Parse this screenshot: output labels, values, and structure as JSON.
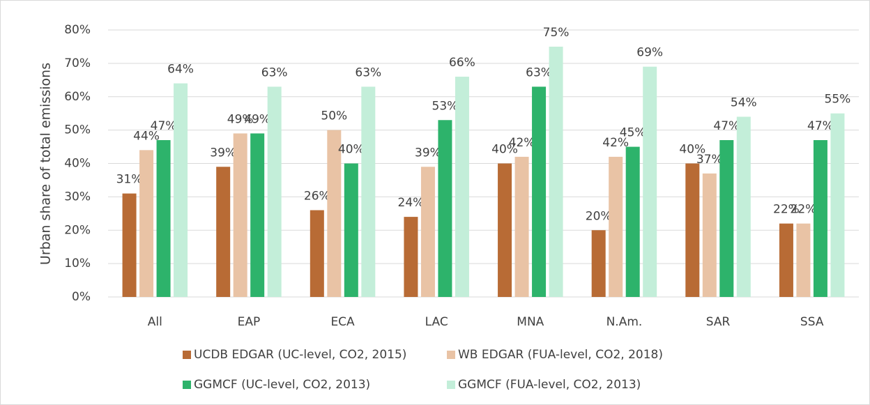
{
  "chart_data": {
    "type": "bar",
    "y_label": "Urban share of total emissions",
    "categories": [
      "All",
      "EAP",
      "ECA",
      "LAC",
      "MNA",
      "N.Am.",
      "SAR",
      "SSA"
    ],
    "series": [
      {
        "name": "UCDB EDGAR (UC-level, CO2, 2015)",
        "color": "#b86b35",
        "values": [
          31,
          39,
          26,
          24,
          40,
          20,
          40,
          22
        ],
        "value_labels": [
          "31%",
          "39%",
          "26%",
          "24%",
          "40%",
          "20%",
          "40%",
          "22%"
        ]
      },
      {
        "name": "WB EDGAR (FUA-level, CO2, 2018)",
        "color": "#e9c3a5",
        "values": [
          44,
          49,
          50,
          39,
          42,
          42,
          37,
          22
        ],
        "value_labels": [
          "44%",
          "49%",
          "50%",
          "39%",
          "42%",
          "42%",
          "37%",
          "22%"
        ]
      },
      {
        "name": "GGMCF (UC-level, CO2, 2013)",
        "color": "#2db36b",
        "values": [
          47,
          49,
          40,
          53,
          63,
          45,
          47,
          47
        ],
        "value_labels": [
          "47%",
          "49%",
          "40%",
          "53%",
          "63%",
          "45%",
          "47%",
          "47%"
        ]
      },
      {
        "name": "GGMCF (FUA-level, CO2, 2013)",
        "color": "#c3eed9",
        "values": [
          64,
          63,
          63,
          66,
          75,
          69,
          54,
          55
        ],
        "value_labels": [
          "64%",
          "63%",
          "63%",
          "66%",
          "75%",
          "69%",
          "54%",
          "55%"
        ]
      }
    ],
    "ylim": [
      0,
      80
    ],
    "yticks": [
      {
        "value": 0,
        "label": "0%"
      },
      {
        "value": 10,
        "label": "10%"
      },
      {
        "value": 20,
        "label": "20%"
      },
      {
        "value": 30,
        "label": "30%"
      },
      {
        "value": 40,
        "label": "40%"
      },
      {
        "value": 50,
        "label": "50%"
      },
      {
        "value": 60,
        "label": "60%"
      },
      {
        "value": 70,
        "label": "70%"
      },
      {
        "value": 80,
        "label": "80%"
      }
    ],
    "grid": true
  }
}
